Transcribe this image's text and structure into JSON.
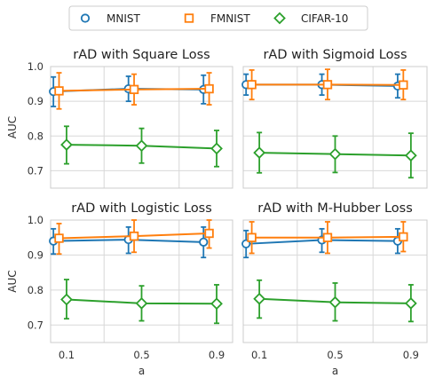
{
  "chart_data": [
    {
      "type": "line",
      "title": "rAD with Square Loss",
      "xlabel": "",
      "ylabel": "AUC",
      "x": [
        0.1,
        0.5,
        0.9
      ],
      "xticks": [
        "0.1",
        "0.5",
        "0.9"
      ],
      "ylim": [
        0.65,
        1.0
      ],
      "yticks": [
        "0.7",
        "0.8",
        "0.9",
        "1.0"
      ],
      "grid": true,
      "series": [
        {
          "name": "MNIST",
          "values": [
            0.928,
            0.936,
            0.934
          ],
          "err_low": [
            0.885,
            0.9,
            0.893
          ],
          "err_high": [
            0.97,
            0.972,
            0.975
          ]
        },
        {
          "name": "FMNIST",
          "values": [
            0.93,
            0.934,
            0.936
          ],
          "err_low": [
            0.878,
            0.89,
            0.89
          ],
          "err_high": [
            0.982,
            0.978,
            0.982
          ]
        },
        {
          "name": "CIFAR-10",
          "values": [
            0.775,
            0.772,
            0.764
          ],
          "err_low": [
            0.72,
            0.722,
            0.712
          ],
          "err_high": [
            0.828,
            0.822,
            0.816
          ]
        }
      ]
    },
    {
      "type": "line",
      "title": "rAD with Sigmoid Loss",
      "xlabel": "",
      "ylabel": "",
      "x": [
        0.1,
        0.5,
        0.9
      ],
      "xticks": [
        "0.1",
        "0.5",
        "0.9"
      ],
      "ylim": [
        0.65,
        1.0
      ],
      "yticks": [
        "0.7",
        "0.8",
        "0.9",
        "1.0"
      ],
      "grid": true,
      "series": [
        {
          "name": "MNIST",
          "values": [
            0.948,
            0.948,
            0.944
          ],
          "err_low": [
            0.918,
            0.918,
            0.91
          ],
          "err_high": [
            0.978,
            0.978,
            0.978
          ]
        },
        {
          "name": "FMNIST",
          "values": [
            0.948,
            0.948,
            0.947
          ],
          "err_low": [
            0.905,
            0.905,
            0.905
          ],
          "err_high": [
            0.99,
            0.992,
            0.99
          ]
        },
        {
          "name": "CIFAR-10",
          "values": [
            0.752,
            0.748,
            0.744
          ],
          "err_low": [
            0.694,
            0.695,
            0.68
          ],
          "err_high": [
            0.81,
            0.8,
            0.808
          ]
        }
      ]
    },
    {
      "type": "line",
      "title": "rAD with Logistic Loss",
      "xlabel": "a",
      "ylabel": "AUC",
      "x": [
        0.1,
        0.5,
        0.9
      ],
      "xticks": [
        "0.1",
        "0.5",
        "0.9"
      ],
      "ylim": [
        0.65,
        1.0
      ],
      "yticks": [
        "0.7",
        "0.8",
        "0.9",
        "1.0"
      ],
      "grid": true,
      "series": [
        {
          "name": "MNIST",
          "values": [
            0.94,
            0.944,
            0.937
          ],
          "err_low": [
            0.903,
            0.905,
            0.893
          ],
          "err_high": [
            0.975,
            0.98,
            0.98
          ]
        },
        {
          "name": "FMNIST",
          "values": [
            0.948,
            0.954,
            0.962
          ],
          "err_low": [
            0.903,
            0.908,
            0.92
          ],
          "err_high": [
            0.99,
            1.0,
            1.0
          ]
        },
        {
          "name": "CIFAR-10",
          "values": [
            0.773,
            0.762,
            0.761
          ],
          "err_low": [
            0.718,
            0.712,
            0.705
          ],
          "err_high": [
            0.83,
            0.812,
            0.815
          ]
        }
      ]
    },
    {
      "type": "line",
      "title": "rAD with M-Hubber Loss",
      "xlabel": "a",
      "ylabel": "",
      "x": [
        0.1,
        0.5,
        0.9
      ],
      "xticks": [
        "0.1",
        "0.5",
        "0.9"
      ],
      "ylim": [
        0.65,
        1.0
      ],
      "yticks": [
        "0.7",
        "0.8",
        "0.9",
        "1.0"
      ],
      "grid": true,
      "series": [
        {
          "name": "MNIST",
          "values": [
            0.932,
            0.943,
            0.94
          ],
          "err_low": [
            0.893,
            0.908,
            0.905
          ],
          "err_high": [
            0.97,
            0.975,
            0.975
          ]
        },
        {
          "name": "FMNIST",
          "values": [
            0.95,
            0.95,
            0.952
          ],
          "err_low": [
            0.905,
            0.905,
            0.91
          ],
          "err_high": [
            0.995,
            0.995,
            0.995
          ]
        },
        {
          "name": "CIFAR-10",
          "values": [
            0.775,
            0.765,
            0.762
          ],
          "err_low": [
            0.72,
            0.712,
            0.71
          ],
          "err_high": [
            0.828,
            0.82,
            0.815
          ]
        }
      ]
    }
  ],
  "legend": {
    "items": [
      {
        "label": "MNIST",
        "color": "#1f77b4",
        "marker": "circle"
      },
      {
        "label": "FMNIST",
        "color": "#ff7f0e",
        "marker": "square"
      },
      {
        "label": "CIFAR-10",
        "color": "#2ca02c",
        "marker": "diamond"
      }
    ]
  }
}
